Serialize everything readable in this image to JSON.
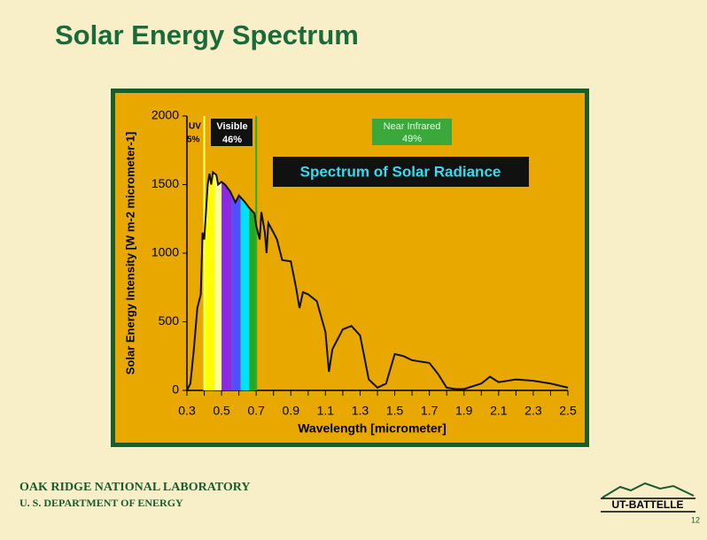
{
  "title": "Solar Energy Spectrum",
  "chart_data": {
    "type": "line",
    "annotation": "Spectrum of Solar Radiance",
    "xlabel": "Wavelength [micrometer]",
    "ylabel": "Solar Energy Intensity [W m-2 micrometer-1]",
    "x": [
      0.3,
      0.32,
      0.34,
      0.36,
      0.38,
      0.39,
      0.4,
      0.41,
      0.42,
      0.43,
      0.44,
      0.45,
      0.47,
      0.48,
      0.5,
      0.52,
      0.55,
      0.58,
      0.6,
      0.63,
      0.66,
      0.69,
      0.7,
      0.72,
      0.73,
      0.75,
      0.76,
      0.77,
      0.8,
      0.82,
      0.85,
      0.9,
      0.93,
      0.95,
      0.97,
      1.0,
      1.05,
      1.1,
      1.12,
      1.14,
      1.2,
      1.25,
      1.3,
      1.35,
      1.4,
      1.45,
      1.5,
      1.55,
      1.6,
      1.7,
      1.75,
      1.8,
      1.85,
      1.9,
      2.0,
      2.05,
      2.1,
      2.2,
      2.3,
      2.4,
      2.5
    ],
    "values": [
      0,
      50,
      300,
      600,
      700,
      1150,
      1100,
      1300,
      1500,
      1580,
      1500,
      1590,
      1570,
      1500,
      1520,
      1500,
      1450,
      1370,
      1420,
      1380,
      1330,
      1290,
      1200,
      1100,
      1300,
      1150,
      1000,
      1220,
      1150,
      1100,
      950,
      940,
      750,
      600,
      716,
      700,
      650,
      425,
      135,
      300,
      445,
      470,
      400,
      80,
      20,
      50,
      265,
      250,
      220,
      200,
      120,
      20,
      10,
      10,
      50,
      100,
      60,
      80,
      70,
      50,
      20
    ],
    "line_color": "#111111",
    "xlim": [
      0.3,
      2.5
    ],
    "xticks": [
      0.3,
      0.5,
      0.7,
      0.9,
      1.1,
      1.3,
      1.5,
      1.7,
      1.9,
      2.1,
      2.3,
      2.5
    ],
    "xminorticks": [
      0.4,
      0.6,
      0.8,
      1.0,
      1.2,
      1.4,
      1.6,
      1.8,
      2.0,
      2.2,
      2.4
    ],
    "ylim": [
      0,
      2000
    ],
    "yticks": [
      0,
      500,
      1000,
      1500,
      2000
    ],
    "boundaries": [
      {
        "value": 0.4,
        "color": "#ffff66"
      },
      {
        "value": 0.7,
        "color": "#33aa33"
      }
    ],
    "bands": [
      {
        "from": 0.4,
        "to": 0.46,
        "color": "#ffff00"
      },
      {
        "from": 0.46,
        "to": 0.5,
        "color": "#ffff99"
      },
      {
        "from": 0.5,
        "to": 0.56,
        "color": "#8a2be2"
      },
      {
        "from": 0.56,
        "to": 0.61,
        "color": "#5050ff"
      },
      {
        "from": 0.61,
        "to": 0.66,
        "color": "#00e0ff"
      },
      {
        "from": 0.66,
        "to": 0.7,
        "color": "#22aa22"
      }
    ],
    "regions": [
      {
        "name": "UV",
        "share": "5%"
      },
      {
        "name": "Visible",
        "share": "46%"
      },
      {
        "name": "Near Infrared",
        "share": "49%"
      }
    ]
  },
  "footer": {
    "lab": "OAK RIDGE NATIONAL LABORATORY",
    "department": "U. S. DEPARTMENT OF ENERGY",
    "logo": "UT-BATTELLE",
    "page": "12"
  }
}
